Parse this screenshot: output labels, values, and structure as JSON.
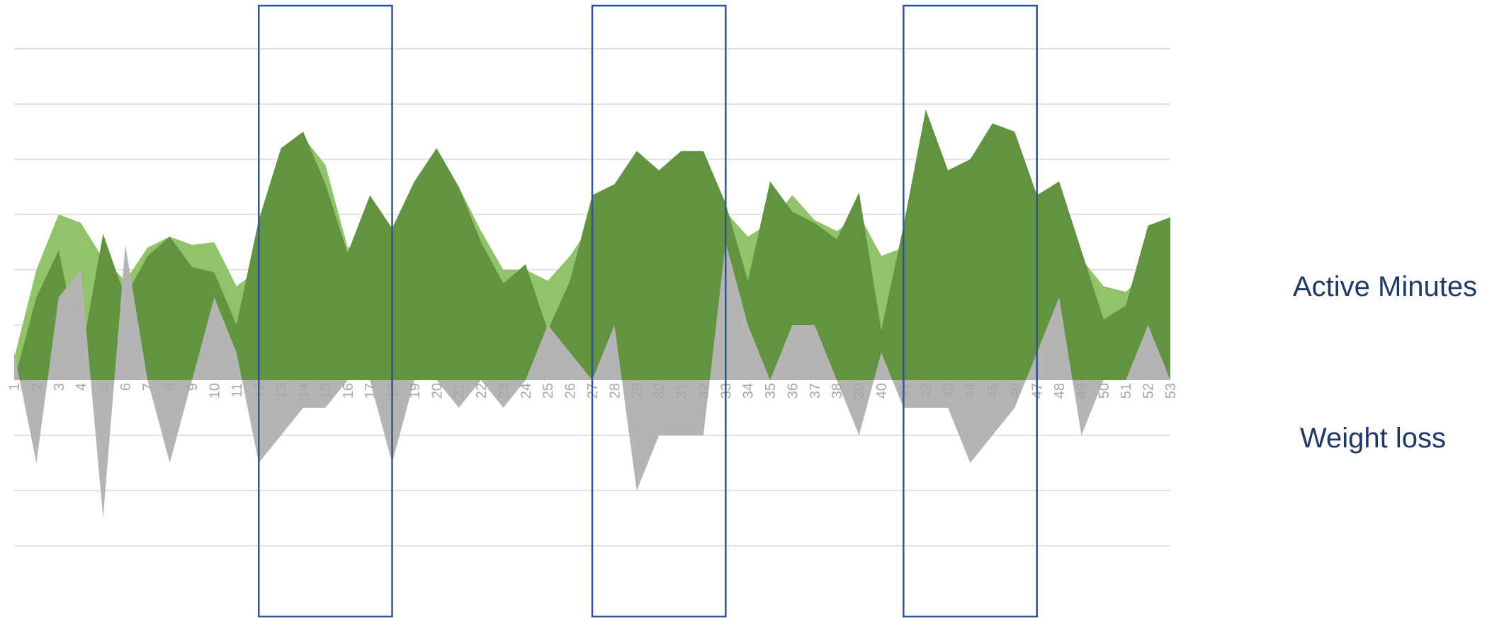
{
  "labels": {
    "active_minutes": "Active Minutes",
    "weight_loss": "Weight loss"
  },
  "colors": {
    "light_green": "#92c36a",
    "dark_green": "#629341",
    "gray": "#b4b4b4",
    "gridline": "#d9d9d9",
    "tick_label": "#a6a6a6",
    "highlight_box": "#2f5597"
  },
  "chart_data": {
    "type": "area",
    "x": [
      1,
      2,
      3,
      4,
      5,
      6,
      7,
      8,
      9,
      10,
      11,
      12,
      13,
      14,
      15,
      16,
      17,
      18,
      19,
      20,
      21,
      22,
      23,
      24,
      25,
      26,
      27,
      28,
      29,
      30,
      31,
      32,
      33,
      34,
      35,
      36,
      37,
      38,
      39,
      40,
      41,
      42,
      43,
      44,
      45,
      46,
      47,
      48,
      49,
      50,
      51,
      52,
      53
    ],
    "ylim": [
      -4,
      6
    ],
    "grid": true,
    "series": [
      {
        "key": "light",
        "values": [
          0.4,
          2.0,
          3.0,
          2.85,
          2.2,
          1.8,
          2.4,
          2.6,
          2.45,
          2.5,
          1.7,
          2.0,
          3.7,
          4.4,
          3.9,
          2.4,
          2.5,
          2.3,
          2.9,
          3.5,
          3.5,
          2.7,
          2.0,
          2.0,
          1.8,
          2.25,
          2.85,
          3.1,
          3.35,
          3.5,
          3.6,
          3.55,
          3.05,
          2.6,
          2.85,
          3.35,
          2.9,
          2.7,
          3.0,
          2.25,
          2.4,
          3.25,
          3.45,
          3.7,
          3.8,
          3.7,
          3.1,
          2.8,
          2.2,
          1.7,
          1.6,
          2.0,
          2.2
        ]
      },
      {
        "key": "dark",
        "values": [
          0.0,
          1.5,
          2.35,
          0.4,
          2.65,
          1.5,
          2.25,
          2.6,
          2.05,
          1.95,
          1.0,
          2.9,
          4.2,
          4.5,
          3.55,
          2.3,
          3.35,
          2.75,
          3.6,
          4.2,
          3.5,
          2.5,
          1.75,
          2.1,
          0.9,
          1.8,
          3.35,
          3.55,
          4.15,
          3.8,
          4.15,
          4.15,
          3.2,
          1.8,
          3.6,
          3.05,
          2.85,
          2.55,
          3.4,
          0.9,
          2.8,
          4.9,
          3.8,
          4.0,
          4.65,
          4.5,
          3.35,
          3.6,
          2.35,
          1.1,
          1.35,
          2.8,
          2.95
        ]
      },
      {
        "key": "gray",
        "values": [
          0.5,
          -1.5,
          1.5,
          2.0,
          -2.5,
          2.45,
          0.0,
          -1.5,
          0.0,
          1.5,
          0.5,
          -1.5,
          -1.0,
          -0.5,
          -0.5,
          0.0,
          0.0,
          -1.5,
          0.0,
          0.0,
          -0.5,
          0.0,
          -0.5,
          0.0,
          1.0,
          0.5,
          0.0,
          1.0,
          -2.0,
          -1.0,
          -1.0,
          -1.0,
          2.5,
          1.0,
          0.0,
          1.0,
          1.0,
          0.0,
          -1.0,
          0.5,
          -0.5,
          -0.5,
          -0.5,
          -1.5,
          -1.0,
          -0.5,
          0.5,
          1.5,
          -1.0,
          0.0,
          0.0,
          1.0,
          0.0
        ]
      }
    ],
    "highlight_ranges": [
      [
        12,
        18
      ],
      [
        27,
        33
      ],
      [
        41,
        47
      ]
    ]
  }
}
